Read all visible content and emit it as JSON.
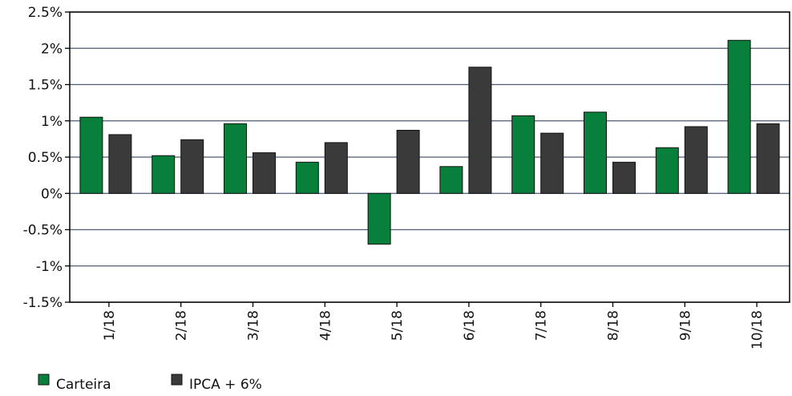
{
  "chart_data": {
    "type": "bar",
    "categories": [
      "1/18",
      "2/18",
      "3/18",
      "4/18",
      "5/18",
      "6/18",
      "7/18",
      "8/18",
      "9/18",
      "10/18"
    ],
    "series": [
      {
        "name": "Carteira",
        "color": "#087f3a",
        "values": [
          1.05,
          0.52,
          0.96,
          0.43,
          -0.7,
          0.37,
          1.07,
          1.12,
          0.63,
          2.11
        ]
      },
      {
        "name": "IPCA + 6%",
        "color": "#3a3a3a",
        "values": [
          0.81,
          0.74,
          0.56,
          0.7,
          0.87,
          1.74,
          0.83,
          0.43,
          0.92,
          0.96
        ]
      }
    ],
    "ylim": [
      -1.5,
      2.5
    ],
    "yticks": [
      {
        "value": -1.5,
        "label": "-1.5%"
      },
      {
        "value": -1,
        "label": "-1%"
      },
      {
        "value": -0.5,
        "label": "-0.5%"
      },
      {
        "value": 0,
        "label": "0%"
      },
      {
        "value": 0.5,
        "label": "0.5%"
      },
      {
        "value": 1,
        "label": "1%"
      },
      {
        "value": 1.5,
        "label": "1.5%"
      },
      {
        "value": 2,
        "label": "2%"
      },
      {
        "value": 2.5,
        "label": "2.5%"
      }
    ],
    "grid": true
  }
}
